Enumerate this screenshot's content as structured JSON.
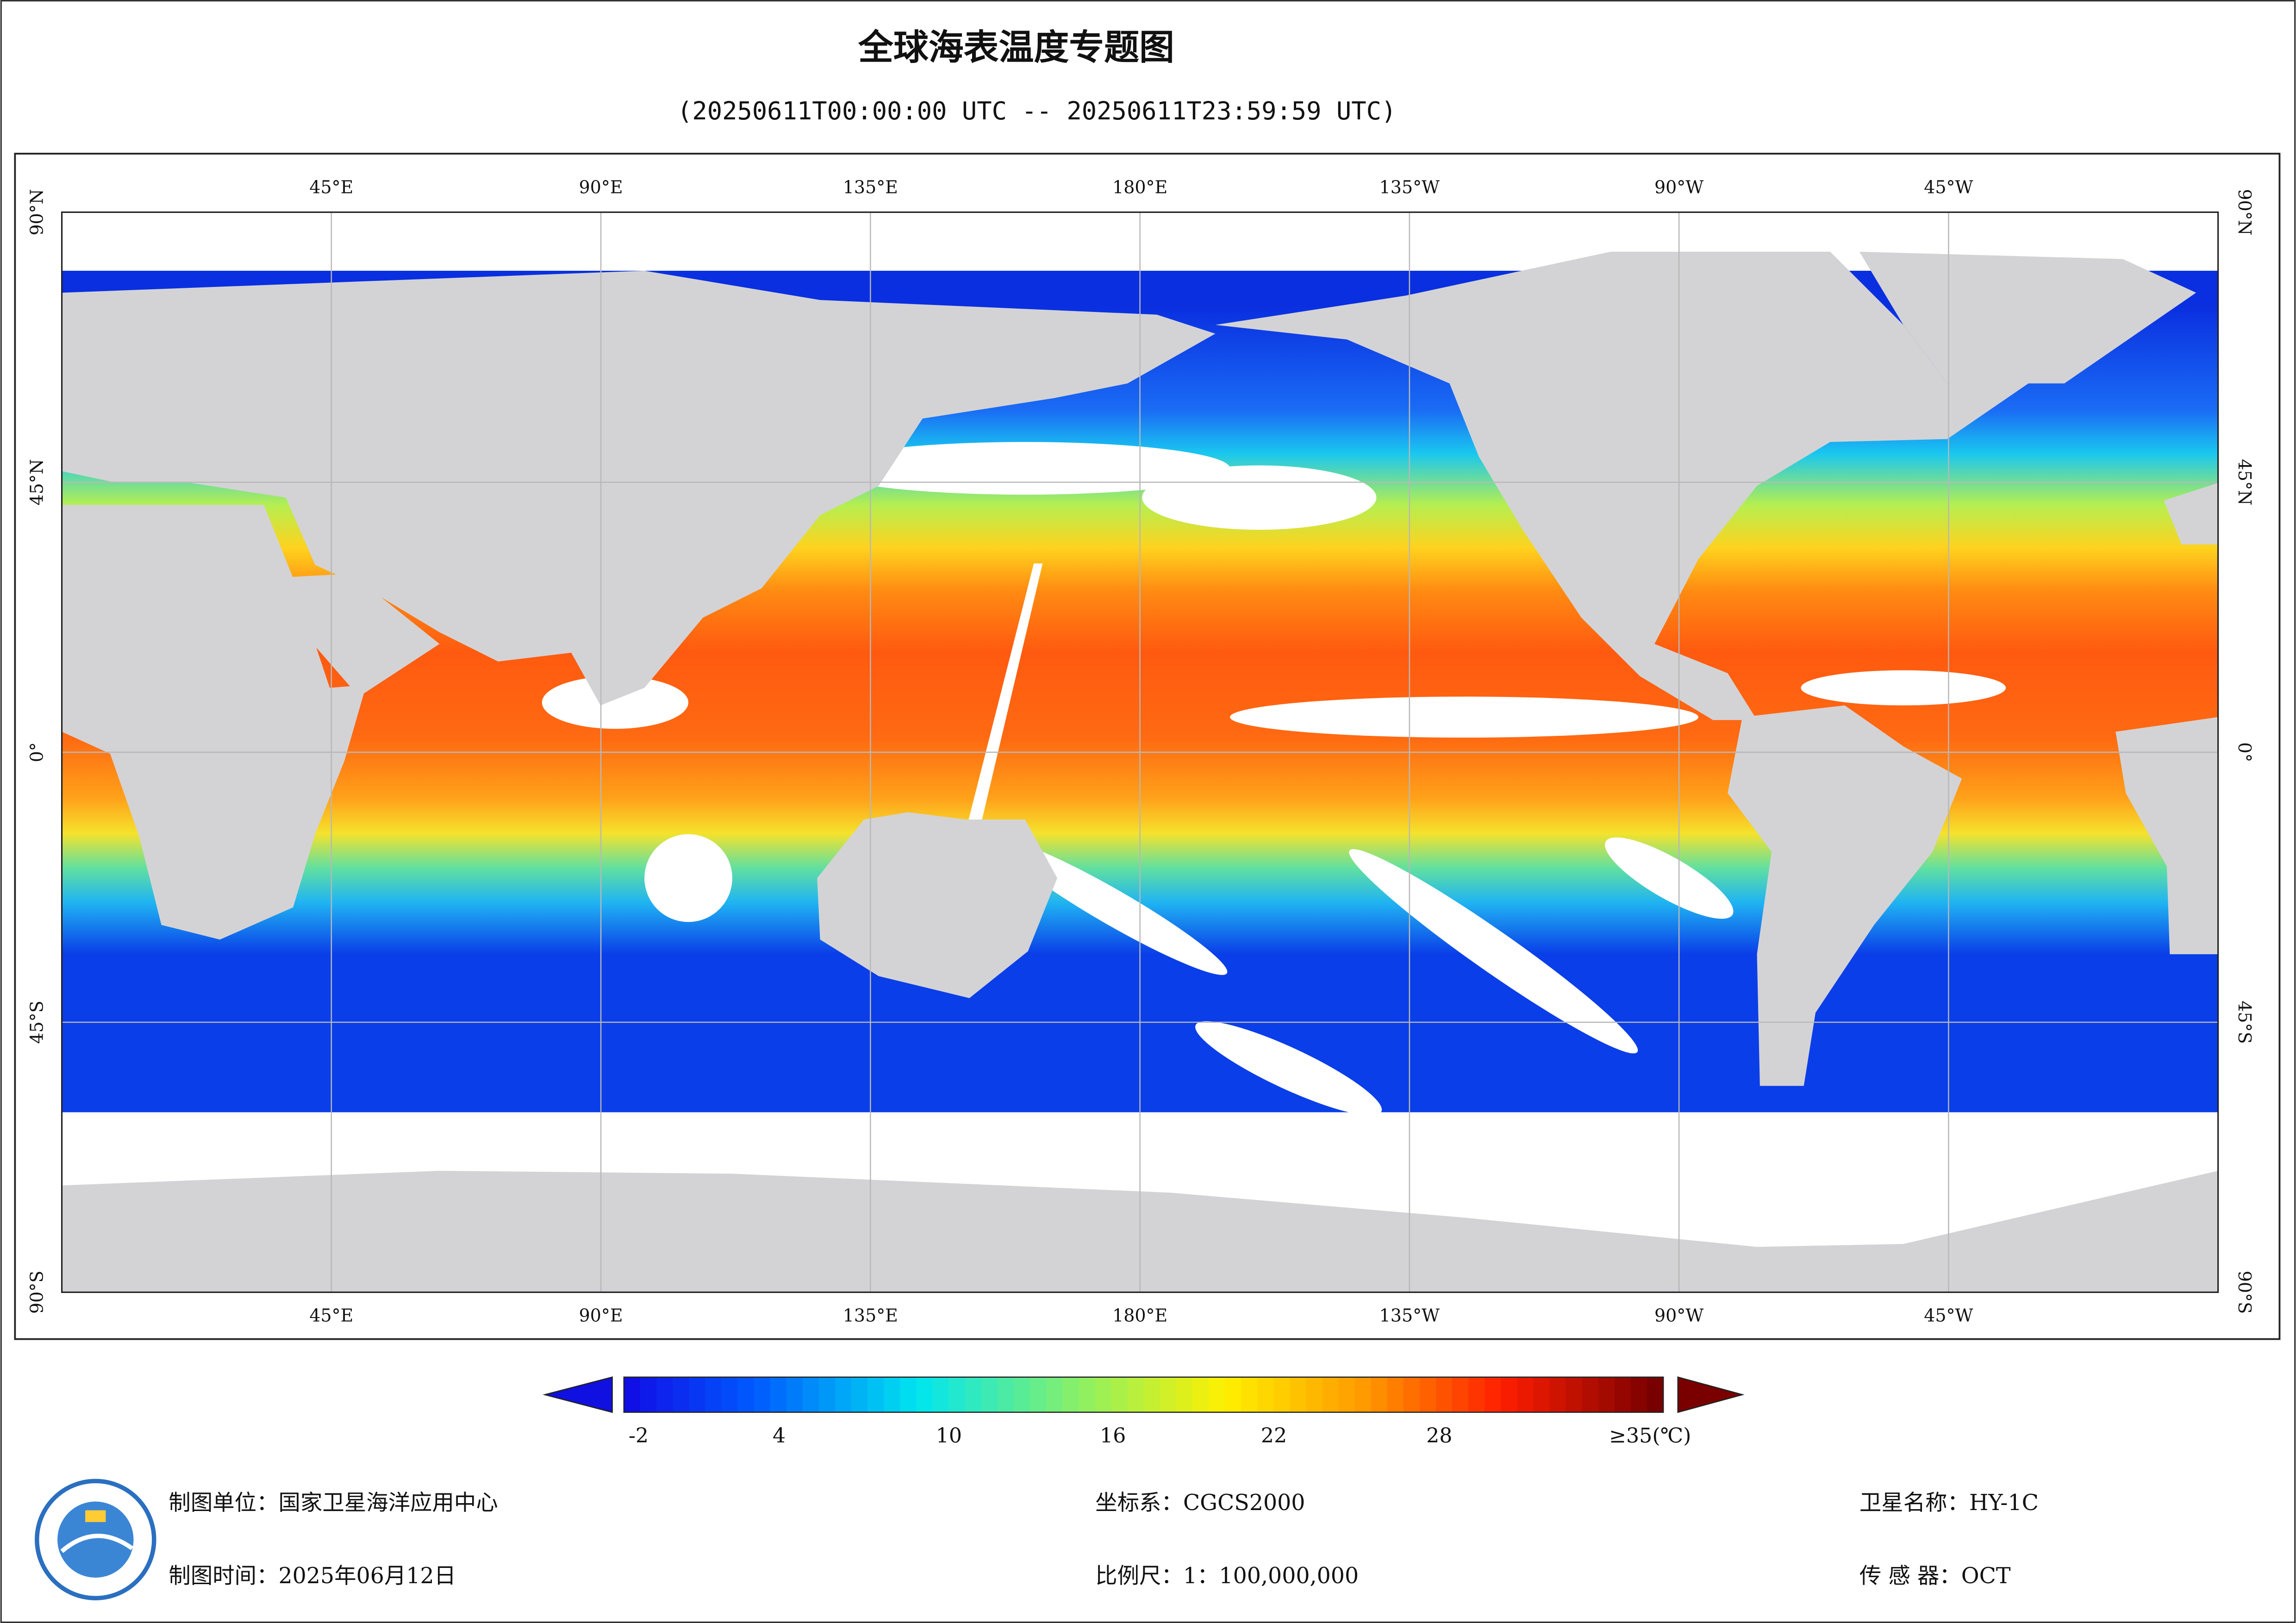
{
  "title": "全球海表温度专题图",
  "subtitle": "(20250611T00:00:00 UTC -- 20250611T23:59:59 UTC)",
  "map": {
    "lon_labels": [
      "45°E",
      "90°E",
      "135°E",
      "180°E",
      "135°W",
      "90°W",
      "45°W"
    ],
    "lat_labels": [
      "90°N",
      "45°N",
      "0°",
      "45°S",
      "90°S"
    ]
  },
  "colorbar": {
    "tick_labels": [
      "-2",
      "4",
      "10",
      "16",
      "22",
      "28",
      "≥35(℃)"
    ]
  },
  "footer": {
    "unit": "制图单位：国家卫星海洋应用中心",
    "date": "制图时间：2025年06月12日",
    "crs": "坐标系：CGCS2000",
    "scale": "比例尺：1：100,000,000",
    "satellite": "卫星名称：HY-1C",
    "sensor": "传 感 器：OCT"
  }
}
